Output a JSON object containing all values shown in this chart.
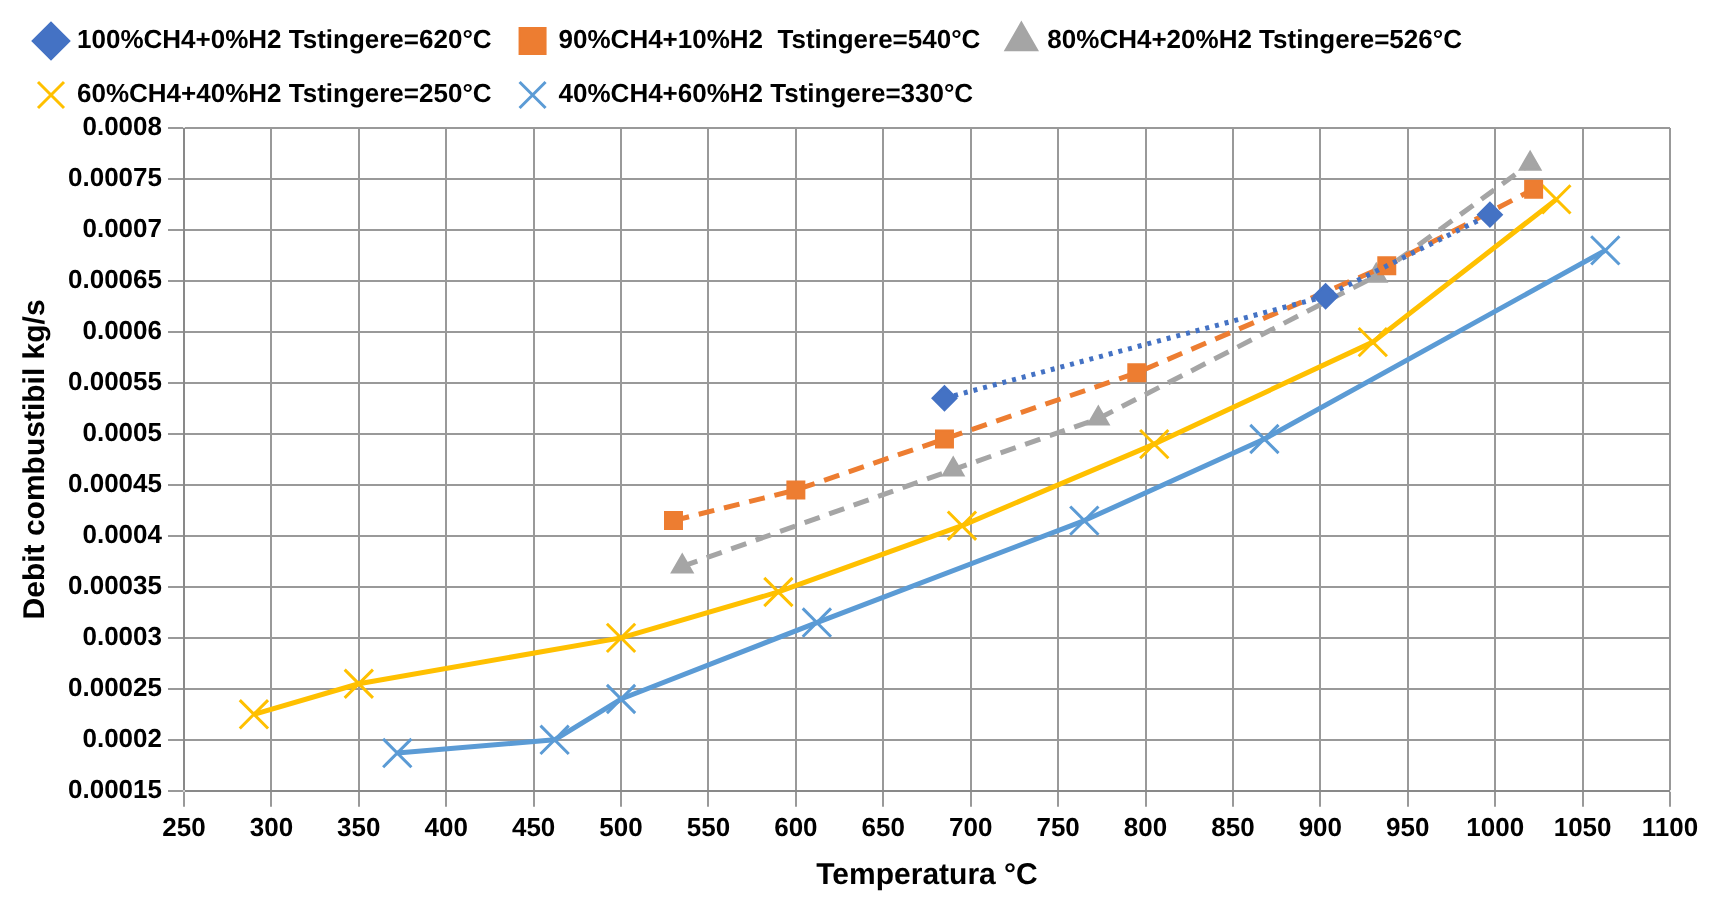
{
  "chart_data": {
    "type": "line",
    "xlabel": "Temperatura °C",
    "ylabel": "Debit combustibil kg/s",
    "xlim": [
      250,
      1100
    ],
    "xticks": [
      250,
      300,
      350,
      400,
      450,
      500,
      550,
      600,
      650,
      700,
      750,
      800,
      850,
      900,
      950,
      1000,
      1050,
      1100
    ],
    "ylim": [
      0.00015,
      0.0008
    ],
    "yticks": [
      0.00015,
      0.0002,
      0.00025,
      0.0003,
      0.00035,
      0.0004,
      0.00045,
      0.0005,
      0.00055,
      0.0006,
      0.00065,
      0.0007,
      0.00075,
      0.0008
    ],
    "grid": true,
    "legend": "top",
    "series": [
      {
        "name": "100%CH4+0%H2 Tstingere=620°C",
        "color": "#4472c4",
        "marker": "diamond",
        "line_style": "dotted",
        "x": [
          685,
          903,
          997
        ],
        "values": [
          0.000535,
          0.000635,
          0.000715
        ]
      },
      {
        "name": "90%CH4+10%H2  Tstingere=540°C",
        "color": "#ed7d31",
        "marker": "square",
        "line_style": "dashed",
        "x": [
          530,
          600,
          685,
          795,
          938,
          1022
        ],
        "values": [
          0.000415,
          0.000445,
          0.000495,
          0.00056,
          0.000665,
          0.00074
        ]
      },
      {
        "name": "80%CH4+20%H2 Tstingere=526°C",
        "color": "#a5a5a5",
        "marker": "triangle",
        "line_style": "dashed",
        "x": [
          535,
          690,
          773,
          932,
          1020
        ],
        "values": [
          0.00037,
          0.000465,
          0.000515,
          0.000655,
          0.000765
        ]
      },
      {
        "name": "60%CH4+40%H2 Tstingere=250°C",
        "color": "#ffc000",
        "marker": "cross",
        "line_style": "solid",
        "x": [
          290,
          350,
          500,
          590,
          695,
          805,
          930,
          1035
        ],
        "values": [
          0.000225,
          0.000255,
          0.0003,
          0.000345,
          0.00041,
          0.00049,
          0.00059,
          0.00073
        ]
      },
      {
        "name": "40%CH4+60%H2 Tstingere=330°C",
        "color": "#5b9bd5",
        "marker": "cross",
        "line_style": "solid",
        "x": [
          372,
          462,
          500,
          612,
          765,
          868,
          1063
        ],
        "values": [
          0.000187,
          0.0002,
          0.00024,
          0.000315,
          0.000415,
          0.000495,
          0.00068
        ]
      }
    ]
  }
}
